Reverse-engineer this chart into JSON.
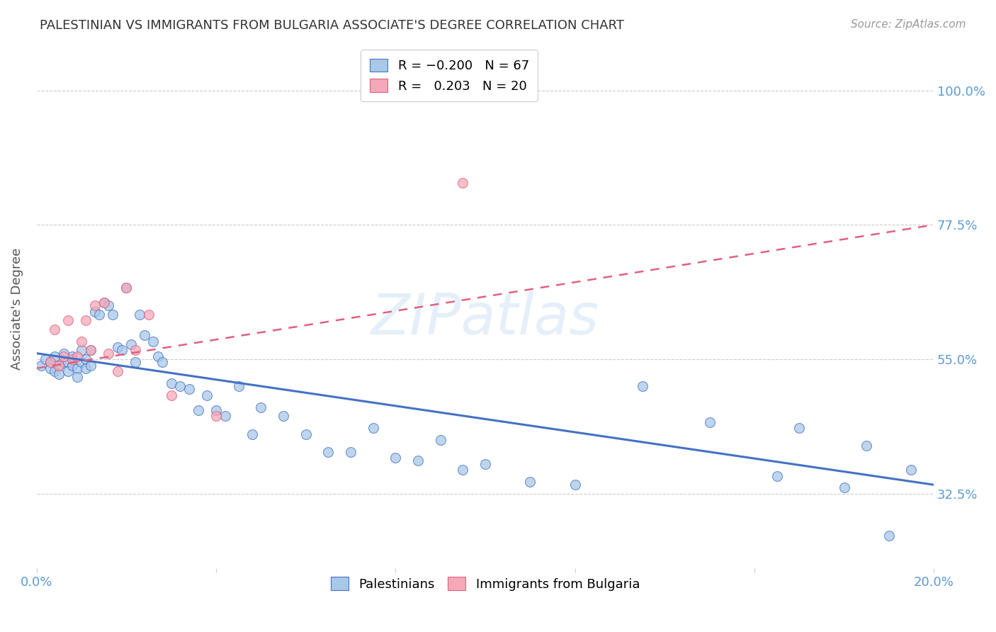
{
  "title": "PALESTINIAN VS IMMIGRANTS FROM BULGARIA ASSOCIATE'S DEGREE CORRELATION CHART",
  "source": "Source: ZipAtlas.com",
  "ylabel": "Associate's Degree",
  "ytick_labels": [
    "100.0%",
    "77.5%",
    "55.0%",
    "32.5%"
  ],
  "ytick_values": [
    1.0,
    0.775,
    0.55,
    0.325
  ],
  "xlim": [
    0.0,
    0.2
  ],
  "ylim": [
    0.2,
    1.07
  ],
  "blue_color": "#a8c8e8",
  "pink_color": "#f4a8b8",
  "blue_line_color": "#4472c4",
  "pink_line_color": "#e06080",
  "palestinians_x": [
    0.001,
    0.002,
    0.003,
    0.003,
    0.004,
    0.004,
    0.005,
    0.005,
    0.006,
    0.006,
    0.007,
    0.007,
    0.008,
    0.008,
    0.009,
    0.009,
    0.01,
    0.01,
    0.011,
    0.011,
    0.012,
    0.012,
    0.013,
    0.014,
    0.015,
    0.016,
    0.017,
    0.018,
    0.019,
    0.02,
    0.021,
    0.022,
    0.023,
    0.024,
    0.026,
    0.027,
    0.028,
    0.03,
    0.032,
    0.034,
    0.036,
    0.038,
    0.04,
    0.042,
    0.045,
    0.048,
    0.05,
    0.055,
    0.06,
    0.065,
    0.07,
    0.075,
    0.08,
    0.085,
    0.09,
    0.095,
    0.1,
    0.11,
    0.12,
    0.135,
    0.15,
    0.165,
    0.17,
    0.18,
    0.185,
    0.19,
    0.195
  ],
  "palestinians_y": [
    0.54,
    0.55,
    0.545,
    0.535,
    0.555,
    0.53,
    0.54,
    0.525,
    0.545,
    0.56,
    0.545,
    0.53,
    0.54,
    0.555,
    0.535,
    0.52,
    0.545,
    0.565,
    0.55,
    0.535,
    0.565,
    0.54,
    0.63,
    0.625,
    0.645,
    0.64,
    0.625,
    0.57,
    0.565,
    0.67,
    0.575,
    0.545,
    0.625,
    0.59,
    0.58,
    0.555,
    0.545,
    0.51,
    0.505,
    0.5,
    0.465,
    0.49,
    0.465,
    0.455,
    0.505,
    0.425,
    0.47,
    0.455,
    0.425,
    0.395,
    0.395,
    0.435,
    0.385,
    0.38,
    0.415,
    0.365,
    0.375,
    0.345,
    0.34,
    0.505,
    0.445,
    0.355,
    0.435,
    0.335,
    0.405,
    0.255,
    0.365
  ],
  "bulgaria_x": [
    0.003,
    0.004,
    0.005,
    0.006,
    0.007,
    0.008,
    0.009,
    0.01,
    0.011,
    0.012,
    0.013,
    0.015,
    0.016,
    0.018,
    0.02,
    0.022,
    0.025,
    0.03,
    0.04,
    0.095
  ],
  "bulgaria_y": [
    0.545,
    0.6,
    0.54,
    0.555,
    0.615,
    0.55,
    0.555,
    0.58,
    0.615,
    0.565,
    0.64,
    0.645,
    0.56,
    0.53,
    0.67,
    0.565,
    0.625,
    0.49,
    0.455,
    0.845
  ],
  "blue_trend_x": [
    0.0,
    0.2
  ],
  "blue_trend_y": [
    0.56,
    0.34
  ],
  "pink_trend_x": [
    0.0,
    0.2
  ],
  "pink_trend_y": [
    0.535,
    0.775
  ],
  "background_color": "#ffffff",
  "grid_color": "#cccccc",
  "title_color": "#333333",
  "ytick_color": "#5b9bd5",
  "xtick_color": "#5b9bd5",
  "marker_size": 100,
  "watermark_text": "ZIPatlas",
  "watermark_color": "#aaccee",
  "watermark_alpha": 0.3
}
